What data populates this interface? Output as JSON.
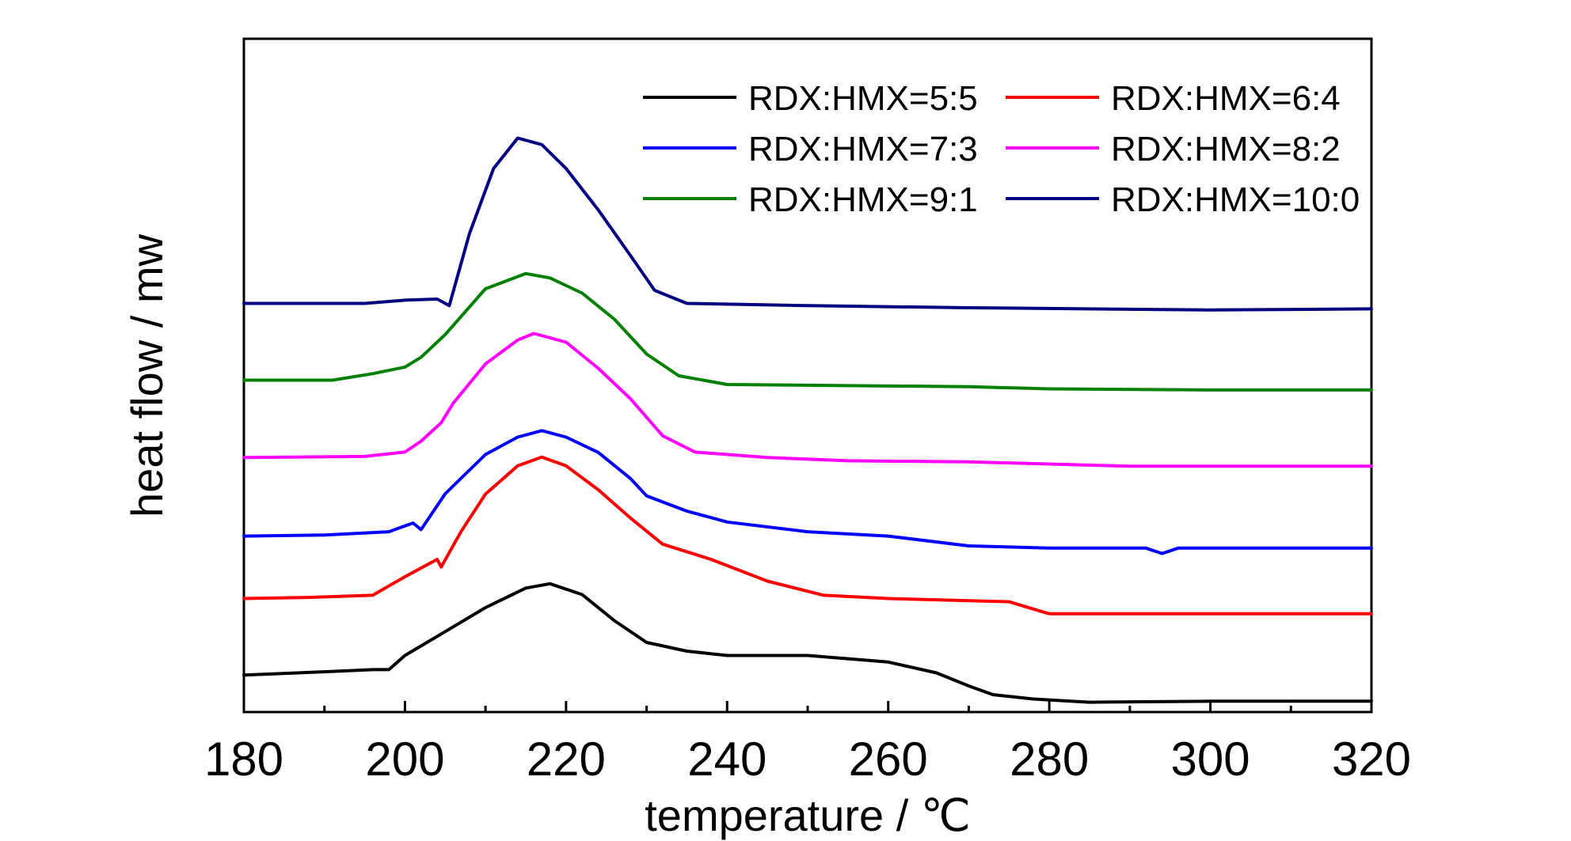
{
  "chart_data": {
    "type": "line",
    "xlabel": "temperature / ℃",
    "ylabel": "heat flow / mw",
    "xlim": [
      180,
      320
    ],
    "x_ticks": [
      "180",
      "200",
      "220",
      "240",
      "260",
      "280",
      "300",
      "320"
    ],
    "y_tick_labels_shown": false,
    "y_units": "offset curves (arbitrary heat flow scale)",
    "grid": false,
    "legend_position": "top-right",
    "legend_columns": 2,
    "series": [
      {
        "name": "RDX:HMX=5:5",
        "color": "#000000",
        "points": [
          [
            180,
            5
          ],
          [
            190,
            6.5
          ],
          [
            196,
            7.5
          ],
          [
            198,
            7.5
          ],
          [
            200,
            14
          ],
          [
            205,
            25
          ],
          [
            210,
            36
          ],
          [
            215,
            45
          ],
          [
            218,
            47
          ],
          [
            222,
            42
          ],
          [
            226,
            30
          ],
          [
            230,
            20
          ],
          [
            235,
            16
          ],
          [
            240,
            14
          ],
          [
            250,
            14
          ],
          [
            260,
            11
          ],
          [
            266,
            6
          ],
          [
            270,
            0
          ],
          [
            273,
            -4
          ],
          [
            278,
            -6
          ],
          [
            285,
            -7.5
          ],
          [
            300,
            -7
          ],
          [
            320,
            -7
          ]
        ]
      },
      {
        "name": "RDX:HMX=6:4",
        "color": "#ff0000",
        "points": [
          [
            180,
            6
          ],
          [
            188,
            6.5
          ],
          [
            196,
            7.5
          ],
          [
            200,
            16
          ],
          [
            203,
            22
          ],
          [
            204,
            24
          ],
          [
            204.5,
            20.5
          ],
          [
            207,
            37
          ],
          [
            210,
            54
          ],
          [
            214,
            67
          ],
          [
            217,
            71
          ],
          [
            220,
            67
          ],
          [
            224,
            56
          ],
          [
            228,
            43
          ],
          [
            232,
            31
          ],
          [
            238,
            24
          ],
          [
            245,
            14
          ],
          [
            252,
            7.5
          ],
          [
            260,
            6
          ],
          [
            275,
            4.5
          ],
          [
            280,
            -1
          ],
          [
            290,
            -1
          ],
          [
            320,
            -1
          ]
        ]
      },
      {
        "name": "RDX:HMX=7:3",
        "color": "#0000ff",
        "points": [
          [
            180,
            4.5
          ],
          [
            190,
            5
          ],
          [
            198,
            6.5
          ],
          [
            201,
            10.5
          ],
          [
            202,
            7.5
          ],
          [
            205,
            24
          ],
          [
            210,
            42
          ],
          [
            214,
            50
          ],
          [
            217,
            53
          ],
          [
            220,
            50
          ],
          [
            224,
            43
          ],
          [
            228,
            31
          ],
          [
            230,
            23
          ],
          [
            235,
            16
          ],
          [
            240,
            11
          ],
          [
            250,
            6.5
          ],
          [
            260,
            4.5
          ],
          [
            270,
            0
          ],
          [
            280,
            -1
          ],
          [
            292,
            -1
          ],
          [
            294,
            -3.5
          ],
          [
            296,
            -1
          ],
          [
            320,
            -1
          ]
        ]
      },
      {
        "name": "RDX:HMX=8:2",
        "color": "#ff00ff",
        "points": [
          [
            180,
            5
          ],
          [
            195,
            5.5
          ],
          [
            200,
            7.5
          ],
          [
            202,
            12.5
          ],
          [
            204.5,
            21
          ],
          [
            206,
            30
          ],
          [
            210,
            48
          ],
          [
            214,
            59
          ],
          [
            216,
            62
          ],
          [
            220,
            58
          ],
          [
            224,
            46
          ],
          [
            228,
            32
          ],
          [
            232,
            15
          ],
          [
            236,
            7.5
          ],
          [
            245,
            5
          ],
          [
            255,
            3.5
          ],
          [
            270,
            3
          ],
          [
            290,
            1
          ],
          [
            320,
            1
          ]
        ]
      },
      {
        "name": "RDX:HMX=9:1",
        "color": "#008000",
        "points": [
          [
            180,
            6
          ],
          [
            191,
            6
          ],
          [
            196,
            9
          ],
          [
            200,
            12
          ],
          [
            202,
            16.5
          ],
          [
            205,
            27
          ],
          [
            210,
            48
          ],
          [
            215,
            55
          ],
          [
            218,
            53
          ],
          [
            222,
            46
          ],
          [
            226,
            34
          ],
          [
            230,
            18
          ],
          [
            234,
            8
          ],
          [
            240,
            4
          ],
          [
            270,
            3
          ],
          [
            280,
            2
          ],
          [
            300,
            1.5
          ],
          [
            320,
            1.5
          ]
        ]
      },
      {
        "name": "RDX:HMX=10:0",
        "color": "#000080",
        "points": [
          [
            180,
            6
          ],
          [
            195,
            6
          ],
          [
            200,
            7.5
          ],
          [
            204,
            8
          ],
          [
            205.5,
            5
          ],
          [
            208,
            38
          ],
          [
            211,
            68
          ],
          [
            214,
            82
          ],
          [
            217,
            79
          ],
          [
            220,
            68
          ],
          [
            224,
            49
          ],
          [
            228,
            28
          ],
          [
            231,
            12
          ],
          [
            235,
            6
          ],
          [
            250,
            5
          ],
          [
            270,
            4
          ],
          [
            300,
            3
          ],
          [
            320,
            3.5
          ]
        ]
      }
    ]
  }
}
